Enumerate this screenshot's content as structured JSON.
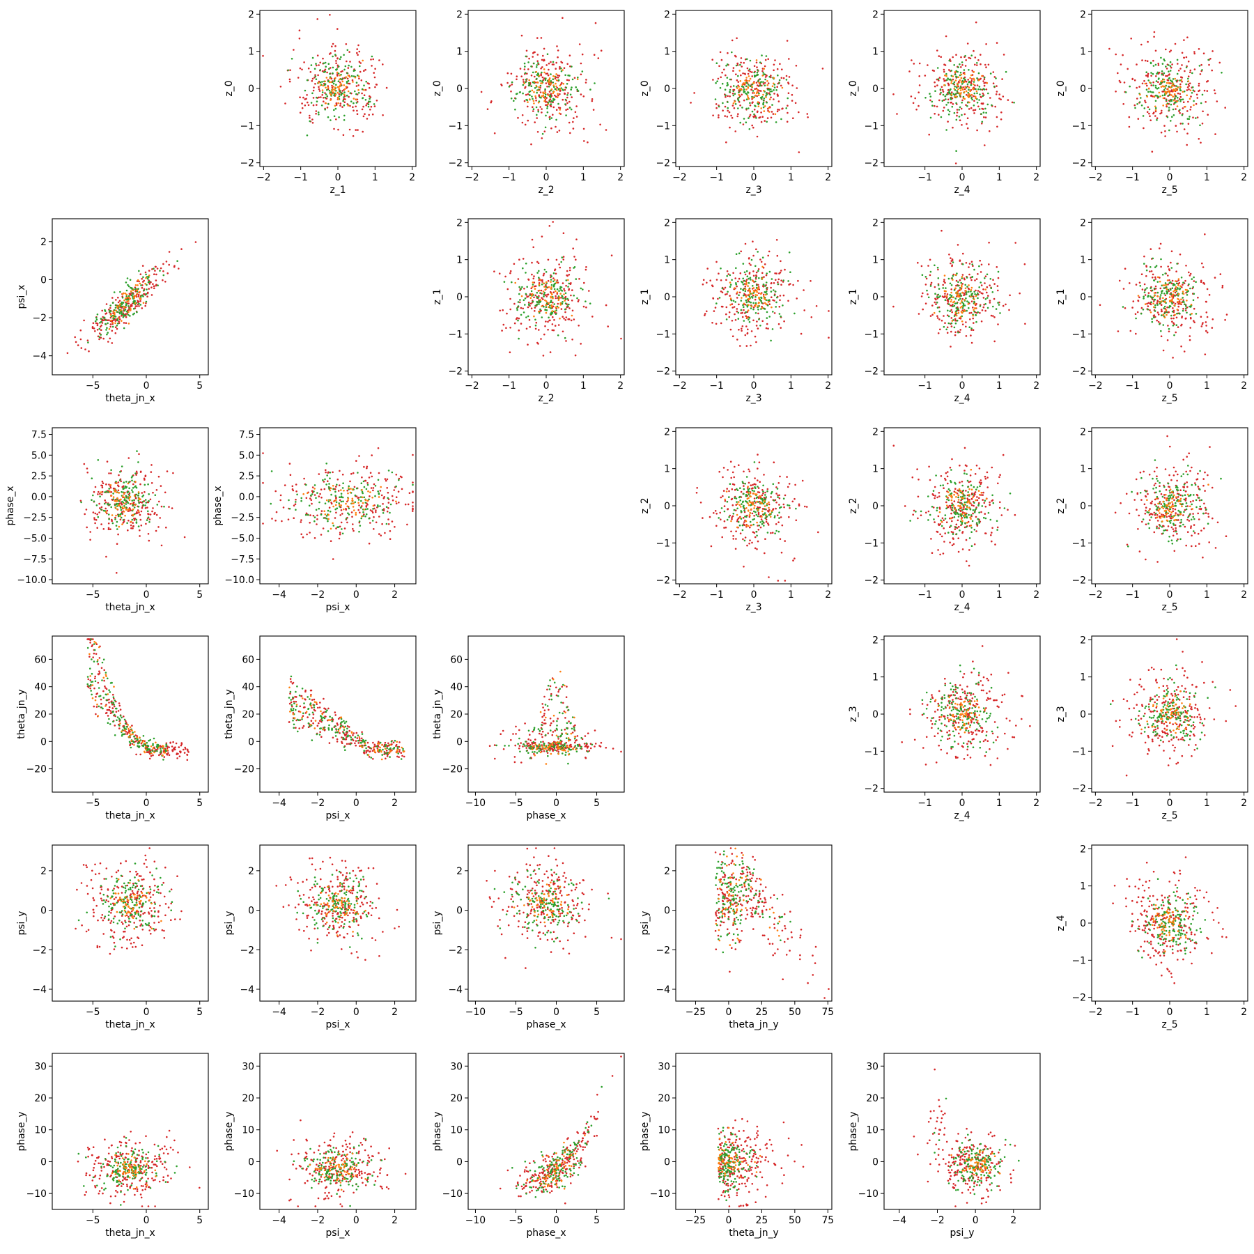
{
  "colors": {
    "red": "#d62728",
    "green": "#2ca02c",
    "orange": "#ff7f0e"
  },
  "chart_data": {
    "type": "scatter",
    "layout": "corner-style scatter matrix (6x6); lower triangle compares x/y context parameters, upper triangle compares latent variables z_0..z_5; diagonal empty",
    "grid": false,
    "legend": "none",
    "point_colors": [
      "#d62728",
      "#2ca02c",
      "#ff7f0e"
    ],
    "variables": {
      "theta_jn_x": {
        "lim": [
          -8.8,
          5.8
        ],
        "ticks": [
          -5,
          0,
          5
        ]
      },
      "psi_x": {
        "lim": [
          -5,
          3.1
        ],
        "ticks": [
          -4,
          -2,
          0,
          2
        ]
      },
      "phase_x": {
        "lim": [
          -10.9,
          8.4
        ],
        "ticks": [
          -10,
          -5,
          0,
          5
        ]
      },
      "theta_jn_y": {
        "lim": [
          -40,
          78
        ],
        "ticks": [
          -25,
          0,
          25,
          50,
          75
        ]
      },
      "psi_y": {
        "lim": [
          -4.8,
          3.4
        ],
        "ticks": [
          -4,
          -2,
          0,
          2
        ]
      },
      "phase_y": {
        "lim": [
          -15,
          34
        ],
        "ticks": [
          -10,
          0,
          10,
          20,
          30
        ]
      },
      "psi_x_vs_theta": {
        "lim": [
          -5,
          3.2
        ],
        "ticks": [
          -4,
          -2,
          0,
          2
        ]
      },
      "phase_x_y": {
        "lim": [
          -10.5,
          8.3
        ],
        "ticks": [
          -10.0,
          -7.5,
          -5.0,
          -2.5,
          0.0,
          2.5,
          5.0,
          7.5
        ],
        "ticklabels": [
          "−10.0",
          "−7.5",
          "−5.0",
          "−2.5",
          "0.0",
          "2.5",
          "5.0",
          "7.5"
        ]
      },
      "theta_jn_y_y": {
        "lim": [
          -37,
          77
        ],
        "ticks": [
          -20,
          0,
          20,
          40,
          60
        ]
      },
      "psi_y_y": {
        "lim": [
          -4.6,
          3.3
        ],
        "ticks": [
          -4,
          -2,
          0,
          2
        ]
      },
      "phase_y_y": {
        "lim": [
          -15,
          34
        ],
        "ticks": [
          -10,
          0,
          10,
          20,
          30
        ]
      },
      "z": {
        "lim": [
          -2.1,
          2.1
        ],
        "ticks": [
          -2,
          -1,
          0,
          1,
          2
        ]
      },
      "z_short": {
        "lim": [
          -2.1,
          2.1
        ],
        "ticks": [
          -1,
          0,
          1,
          2
        ]
      }
    },
    "panels": [
      {
        "row": 0,
        "col": 1,
        "x": "z_1",
        "y": "z_0",
        "xvar": "z",
        "yvar": "z",
        "pattern": "blob"
      },
      {
        "row": 0,
        "col": 2,
        "x": "z_2",
        "y": "z_0",
        "xvar": "z",
        "yvar": "z",
        "pattern": "blob"
      },
      {
        "row": 0,
        "col": 3,
        "x": "z_3",
        "y": "z_0",
        "xvar": "z",
        "yvar": "z",
        "pattern": "blob"
      },
      {
        "row": 0,
        "col": 4,
        "x": "z_4",
        "y": "z_0",
        "xvar": "z_short",
        "yvar": "z",
        "pattern": "blob"
      },
      {
        "row": 0,
        "col": 5,
        "x": "z_5",
        "y": "z_0",
        "xvar": "z",
        "yvar": "z",
        "pattern": "blob"
      },
      {
        "row": 1,
        "col": 0,
        "x": "theta_jn_x",
        "y": "psi_x",
        "xvar": "theta_jn_x",
        "yvar": "psi_x_vs_theta",
        "pattern": "corr_pos"
      },
      {
        "row": 1,
        "col": 2,
        "x": "z_2",
        "y": "z_1",
        "xvar": "z",
        "yvar": "z",
        "pattern": "blob"
      },
      {
        "row": 1,
        "col": 3,
        "x": "z_3",
        "y": "z_1",
        "xvar": "z",
        "yvar": "z",
        "pattern": "blob"
      },
      {
        "row": 1,
        "col": 4,
        "x": "z_4",
        "y": "z_1",
        "xvar": "z_short",
        "yvar": "z",
        "pattern": "blob"
      },
      {
        "row": 1,
        "col": 5,
        "x": "z_5",
        "y": "z_1",
        "xvar": "z",
        "yvar": "z",
        "pattern": "blob"
      },
      {
        "row": 2,
        "col": 0,
        "x": "theta_jn_x",
        "y": "phase_x",
        "xvar": "theta_jn_x",
        "yvar": "phase_x_y",
        "pattern": "broad"
      },
      {
        "row": 2,
        "col": 1,
        "x": "psi_x",
        "y": "phase_x",
        "xvar": "psi_x",
        "yvar": "phase_x_y",
        "pattern": "broad"
      },
      {
        "row": 2,
        "col": 3,
        "x": "z_3",
        "y": "z_2",
        "xvar": "z",
        "yvar": "z",
        "pattern": "blob"
      },
      {
        "row": 2,
        "col": 4,
        "x": "z_4",
        "y": "z_2",
        "xvar": "z_short",
        "yvar": "z",
        "pattern": "blob"
      },
      {
        "row": 2,
        "col": 5,
        "x": "z_5",
        "y": "z_2",
        "xvar": "z",
        "yvar": "z",
        "pattern": "blob"
      },
      {
        "row": 3,
        "col": 0,
        "x": "theta_jn_x",
        "y": "theta_jn_y",
        "xvar": "theta_jn_x",
        "yvar": "theta_jn_y_y",
        "pattern": "hockey"
      },
      {
        "row": 3,
        "col": 1,
        "x": "psi_x",
        "y": "theta_jn_y",
        "xvar": "psi_x",
        "yvar": "theta_jn_y_y",
        "pattern": "decay"
      },
      {
        "row": 3,
        "col": 2,
        "x": "phase_x",
        "y": "theta_jn_y",
        "xvar": "phase_x",
        "yvar": "theta_jn_y_y",
        "pattern": "spike"
      },
      {
        "row": 3,
        "col": 4,
        "x": "z_4",
        "y": "z_3",
        "xvar": "z_short",
        "yvar": "z",
        "pattern": "blob"
      },
      {
        "row": 3,
        "col": 5,
        "x": "z_5",
        "y": "z_3",
        "xvar": "z",
        "yvar": "z",
        "pattern": "blob"
      },
      {
        "row": 4,
        "col": 0,
        "x": "theta_jn_x",
        "y": "psi_y",
        "xvar": "theta_jn_x",
        "yvar": "psi_y_y",
        "pattern": "broad_up"
      },
      {
        "row": 4,
        "col": 1,
        "x": "psi_x",
        "y": "psi_y",
        "xvar": "psi_x",
        "yvar": "psi_y_y",
        "pattern": "broad_up"
      },
      {
        "row": 4,
        "col": 2,
        "x": "phase_x",
        "y": "psi_y",
        "xvar": "phase_x",
        "yvar": "psi_y_y",
        "pattern": "broad_up"
      },
      {
        "row": 4,
        "col": 3,
        "x": "theta_jn_y",
        "y": "psi_y",
        "xvar": "theta_jn_y",
        "yvar": "psi_y_y",
        "pattern": "triangle"
      },
      {
        "row": 4,
        "col": 5,
        "x": "z_5",
        "y": "z_4",
        "xvar": "z",
        "yvar": "z",
        "pattern": "blob"
      },
      {
        "row": 5,
        "col": 0,
        "x": "theta_jn_x",
        "y": "phase_y",
        "xvar": "theta_jn_x",
        "yvar": "phase_y_y",
        "pattern": "broad_down"
      },
      {
        "row": 5,
        "col": 1,
        "x": "psi_x",
        "y": "phase_y",
        "xvar": "psi_x",
        "yvar": "phase_y_y",
        "pattern": "broad_down"
      },
      {
        "row": 5,
        "col": 2,
        "x": "phase_x",
        "y": "phase_y",
        "xvar": "phase_x",
        "yvar": "phase_y_y",
        "pattern": "corr_phase"
      },
      {
        "row": 5,
        "col": 3,
        "x": "theta_jn_y",
        "y": "phase_y",
        "xvar": "theta_jn_y",
        "yvar": "phase_y_y",
        "pattern": "vertical"
      },
      {
        "row": 5,
        "col": 4,
        "x": "psi_y",
        "y": "phase_y",
        "xvar": "psi_y",
        "yvar": "phase_y_y",
        "pattern": "psi_phase"
      }
    ]
  }
}
